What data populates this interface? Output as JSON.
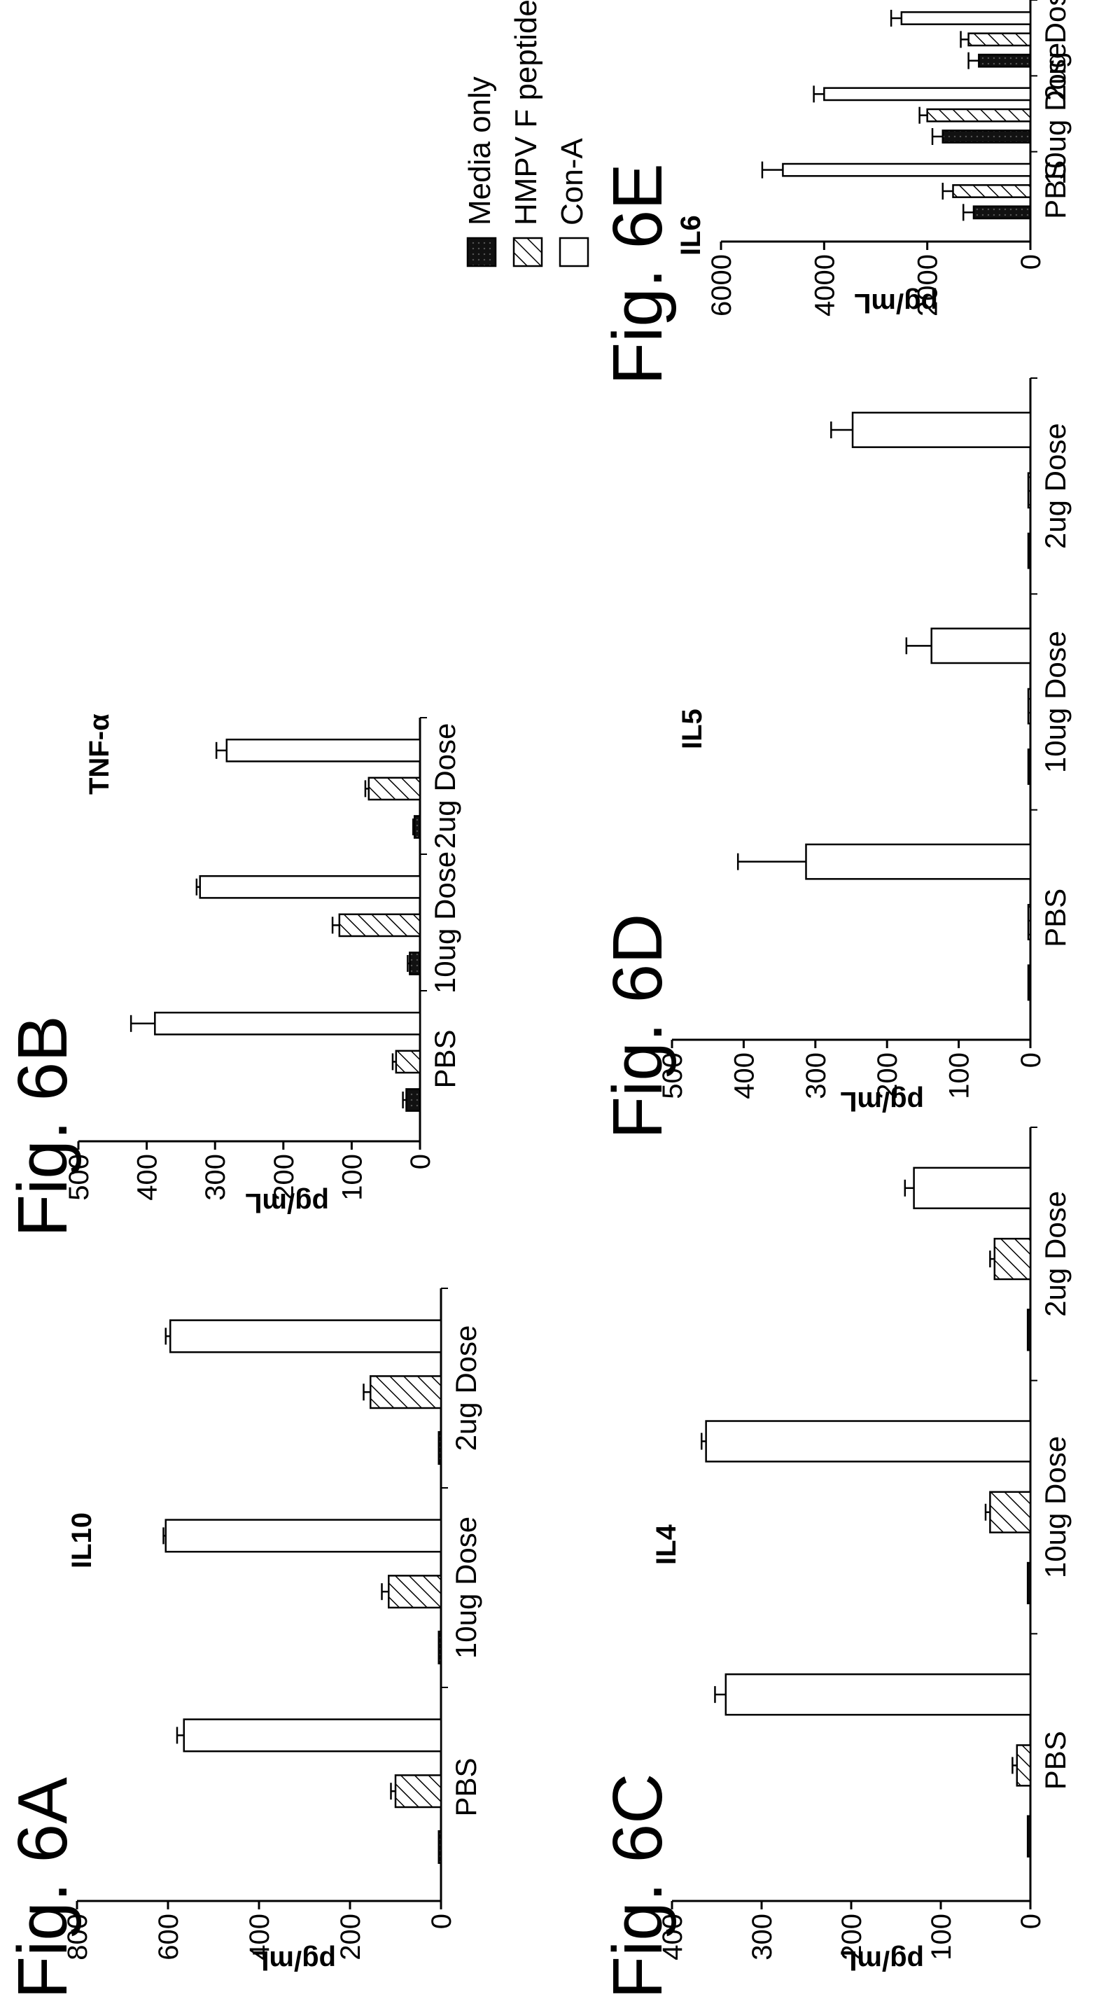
{
  "legend": [
    {
      "name": "Media only",
      "fill": "solid"
    },
    {
      "name": "HMPV F peptide pool",
      "fill": "hatch"
    },
    {
      "name": "Con-A",
      "fill": "white"
    }
  ],
  "chart_data": [
    {
      "figure": "Fig. 6A",
      "type": "bar",
      "title": "IL10",
      "ylabel": "pg/mL",
      "ylim": [
        0,
        800
      ],
      "yticks": [
        0,
        200,
        400,
        600,
        800
      ],
      "categories": [
        "PBS",
        "10ug Dose",
        "2ug Dose"
      ],
      "series": [
        {
          "name": "Media only",
          "values": [
            5,
            5,
            5
          ],
          "errors": [
            0,
            0,
            0
          ]
        },
        {
          "name": "HMPV F peptide pool",
          "values": [
            100,
            115,
            155
          ],
          "errors": [
            10,
            15,
            15
          ]
        },
        {
          "name": "Con-A",
          "values": [
            565,
            605,
            595
          ],
          "errors": [
            15,
            5,
            10
          ]
        }
      ]
    },
    {
      "figure": "Fig. 6B",
      "type": "bar",
      "title": "TNF-α",
      "ylabel": "pg/mL",
      "ylim": [
        0,
        500
      ],
      "yticks": [
        0,
        100,
        200,
        300,
        400,
        500
      ],
      "categories": [
        "PBS",
        "10ug Dose",
        "2ug Dose"
      ],
      "series": [
        {
          "name": "Media only",
          "values": [
            20,
            15,
            8
          ],
          "errors": [
            5,
            3,
            2
          ]
        },
        {
          "name": "HMPV F peptide pool",
          "values": [
            35,
            118,
            75
          ],
          "errors": [
            5,
            10,
            5
          ]
        },
        {
          "name": "Con-A",
          "values": [
            388,
            322,
            283
          ],
          "errors": [
            35,
            5,
            15
          ]
        }
      ]
    },
    {
      "figure": "Fig. 6C",
      "type": "bar",
      "title": "IL4",
      "ylabel": "pg/mL",
      "ylim": [
        0,
        400
      ],
      "yticks": [
        0,
        100,
        200,
        300,
        400
      ],
      "categories": [
        "PBS",
        "10ug Dose",
        "2ug Dose"
      ],
      "series": [
        {
          "name": "Media only",
          "values": [
            3,
            3,
            3
          ],
          "errors": [
            0,
            0,
            0
          ]
        },
        {
          "name": "HMPV F peptide pool",
          "values": [
            15,
            45,
            40
          ],
          "errors": [
            5,
            5,
            5
          ]
        },
        {
          "name": "Con-A",
          "values": [
            340,
            362,
            130
          ],
          "errors": [
            12,
            5,
            10
          ]
        }
      ]
    },
    {
      "figure": "Fig. 6D",
      "type": "bar",
      "title": "IL5",
      "ylabel": "pg/mL",
      "ylim": [
        0,
        500
      ],
      "yticks": [
        0,
        100,
        200,
        300,
        400,
        500
      ],
      "categories": [
        "PBS",
        "10ug Dose",
        "2ug Dose"
      ],
      "series": [
        {
          "name": "Media only",
          "values": [
            2,
            2,
            2
          ],
          "errors": [
            0,
            0,
            0
          ]
        },
        {
          "name": "HMPV F peptide pool",
          "values": [
            2,
            2,
            2
          ],
          "errors": [
            0,
            0,
            0
          ]
        },
        {
          "name": "Con-A",
          "values": [
            313,
            138,
            248
          ],
          "errors": [
            95,
            35,
            30
          ]
        }
      ]
    },
    {
      "figure": "Fig. 6E",
      "type": "bar",
      "title": "IL6",
      "ylabel": "pg/mL",
      "ylim": [
        0,
        6000
      ],
      "yticks": [
        0,
        2000,
        4000,
        6000
      ],
      "categories": [
        "PBS",
        "10ug Dose",
        "2ug Dose"
      ],
      "series": [
        {
          "name": "Media only",
          "values": [
            1100,
            1700,
            1000
          ],
          "errors": [
            200,
            200,
            200
          ]
        },
        {
          "name": "HMPV F peptide pool",
          "values": [
            1500,
            2000,
            1200
          ],
          "errors": [
            200,
            150,
            150
          ]
        },
        {
          "name": "Con-A",
          "values": [
            4800,
            4000,
            2500
          ],
          "errors": [
            400,
            200,
            200
          ]
        }
      ]
    }
  ]
}
